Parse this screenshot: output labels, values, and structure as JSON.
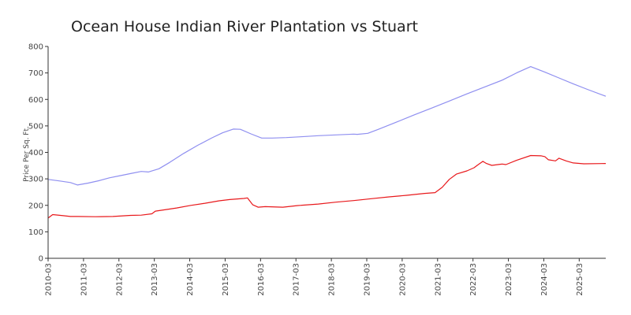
{
  "chart_data": {
    "type": "line",
    "title": "Ocean House Indian River Plantation vs Stuart",
    "xlabel": "",
    "ylabel": "Price Per Sq. Ft.",
    "ylim": [
      0,
      800
    ],
    "yticks": [
      0,
      100,
      200,
      300,
      400,
      500,
      600,
      700,
      800
    ],
    "xlim": [
      2010.17,
      2025.92
    ],
    "xticks": [
      {
        "label": "2010-03",
        "value": 2010.17
      },
      {
        "label": "2011-03",
        "value": 2011.17
      },
      {
        "label": "2012-03",
        "value": 2012.17
      },
      {
        "label": "2013-03",
        "value": 2013.17
      },
      {
        "label": "2014-03",
        "value": 2014.17
      },
      {
        "label": "2015-03",
        "value": 2015.17
      },
      {
        "label": "2016-03",
        "value": 2016.17
      },
      {
        "label": "2017-03",
        "value": 2017.17
      },
      {
        "label": "2018-03",
        "value": 2018.17
      },
      {
        "label": "2019-03",
        "value": 2019.17
      },
      {
        "label": "2020-03",
        "value": 2020.17
      },
      {
        "label": "2021-03",
        "value": 2021.17
      },
      {
        "label": "2022-03",
        "value": 2022.17
      },
      {
        "label": "2023-03",
        "value": 2023.17
      },
      {
        "label": "2024-03",
        "value": 2024.17
      },
      {
        "label": "2025-03",
        "value": 2025.17
      }
    ],
    "series": [
      {
        "name": "Stuart",
        "color": "#8f8ff0",
        "x": [
          2010.17,
          2010.5,
          2010.8,
          2011.0,
          2011.3,
          2011.6,
          2011.9,
          2012.2,
          2012.5,
          2012.8,
          2013.0,
          2013.3,
          2013.6,
          2014.0,
          2014.4,
          2014.8,
          2015.1,
          2015.4,
          2015.6,
          2015.9,
          2016.2,
          2016.5,
          2016.9,
          2017.3,
          2017.8,
          2018.3,
          2018.8,
          2018.9,
          2019.2,
          2019.5,
          2020.0,
          2020.5,
          2021.0,
          2021.5,
          2022.0,
          2022.5,
          2023.0,
          2023.4,
          2023.8,
          2024.2,
          2024.6,
          2025.0,
          2025.4,
          2025.92
        ],
        "values": [
          298,
          292,
          286,
          277,
          284,
          293,
          304,
          312,
          320,
          328,
          326,
          338,
          362,
          396,
          427,
          455,
          474,
          488,
          487,
          470,
          454,
          454,
          456,
          459,
          463,
          466,
          469,
          468,
          472,
          487,
          514,
          541,
          567,
          594,
          621,
          647,
          673,
          700,
          724,
          703,
          681,
          659,
          638,
          612
        ]
      },
      {
        "name": "Ocean House Indian River Plantation",
        "color": "#e8191c",
        "x": [
          2010.17,
          2010.3,
          2010.6,
          2010.8,
          2011.0,
          2011.5,
          2012.0,
          2012.5,
          2012.8,
          2013.1,
          2013.2,
          2013.5,
          2013.8,
          2014.2,
          2014.6,
          2015.0,
          2015.3,
          2015.7,
          2015.8,
          2015.95,
          2016.1,
          2016.3,
          2016.8,
          2017.2,
          2017.8,
          2018.3,
          2018.8,
          2019.3,
          2019.8,
          2020.3,
          2020.8,
          2021.1,
          2021.3,
          2021.5,
          2021.7,
          2022.0,
          2022.2,
          2022.3,
          2022.45,
          2022.55,
          2022.7,
          2023.0,
          2023.1,
          2023.4,
          2023.8,
          2024.1,
          2024.2,
          2024.3,
          2024.5,
          2024.6,
          2024.8,
          2025.0,
          2025.3,
          2025.92
        ],
        "values": [
          152,
          165,
          161,
          158,
          158,
          157,
          158,
          162,
          163,
          168,
          178,
          184,
          190,
          200,
          208,
          217,
          222,
          226,
          228,
          202,
          193,
          195,
          193,
          199,
          205,
          212,
          218,
          225,
          232,
          238,
          245,
          248,
          268,
          298,
          318,
          330,
          342,
          352,
          366,
          358,
          351,
          356,
          354,
          370,
          388,
          387,
          384,
          372,
          368,
          378,
          368,
          360,
          357,
          358
        ]
      }
    ]
  }
}
